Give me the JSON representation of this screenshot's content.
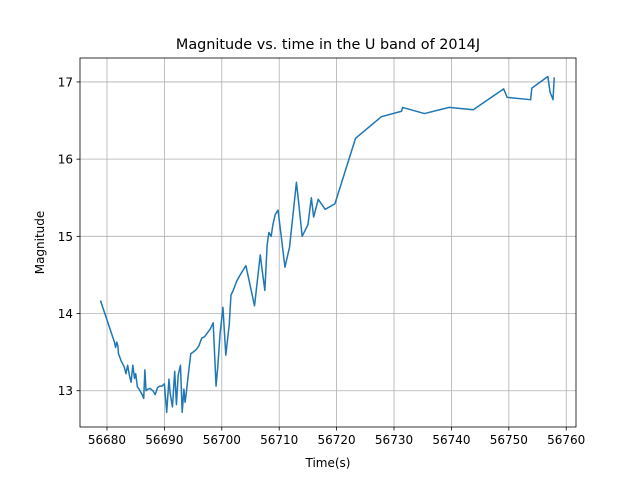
{
  "chart_data": {
    "type": "line",
    "title": "Magnitude vs. time in the U band of 2014J",
    "xlabel": "Time(s)",
    "ylabel": "Magnitude",
    "xlim": [
      56675.3,
      56761.7
    ],
    "ylim": [
      12.53,
      17.31
    ],
    "xticks": [
      56680,
      56690,
      56700,
      56710,
      56720,
      56730,
      56740,
      56750,
      56760
    ],
    "yticks": [
      13,
      14,
      15,
      16,
      17
    ],
    "grid": true,
    "line_color": "#1f77b4",
    "series": [
      {
        "x": [
          56678.9,
          56681.3,
          56681.5,
          56681.7,
          56681.9,
          56682.0,
          56682.5,
          56683.0,
          56683.3,
          56683.6,
          56683.9,
          56684.2,
          56684.5,
          56684.8,
          56685.0,
          56685.3,
          56685.6,
          56685.9,
          56686.2,
          56686.4,
          56686.6,
          56686.8,
          56687.1,
          56687.5,
          56688.0,
          56688.4,
          56688.8,
          56689.2,
          56689.6,
          56690.0,
          56690.4,
          56690.8,
          56691.0,
          56691.4,
          56691.8,
          56692.1,
          56692.4,
          56692.8,
          56693.1,
          56693.4,
          56693.6,
          56693.8,
          56694.2,
          56694.6,
          56695.0,
          56695.5,
          56696.0,
          56696.5,
          56697.0,
          56697.5,
          56698.0,
          56698.5,
          56699.0,
          56699.3,
          56699.7,
          56700.2,
          56700.7,
          56701.3,
          56701.6,
          56702.0,
          56702.6,
          56703.2,
          56704.2,
          56705.7,
          56706.7,
          56707.0,
          56707.5,
          56707.9,
          56708.2,
          56708.6,
          56708.9,
          56709.3,
          56709.8,
          56711.0,
          56711.8,
          56713.0,
          56713.3,
          56714.0,
          56715.0,
          56715.6,
          56716.0,
          56716.8,
          56718.0,
          56719.7,
          56723.3,
          56727.8,
          56731.3,
          56731.5,
          56735.3,
          56739.6,
          56743.8,
          56749.1,
          56749.7,
          56753.8,
          56754.0,
          56756.8,
          56757.2,
          56757.5,
          56757.7,
          56757.9
        ],
        "y": [
          14.16,
          13.63,
          13.56,
          13.63,
          13.58,
          13.48,
          13.38,
          13.31,
          13.22,
          13.33,
          13.2,
          13.11,
          13.33,
          13.16,
          13.22,
          13.05,
          13.02,
          12.98,
          12.94,
          12.9,
          13.27,
          13.0,
          13.02,
          13.03,
          13.0,
          12.95,
          13.04,
          13.06,
          13.06,
          13.09,
          12.72,
          13.15,
          12.97,
          12.79,
          13.25,
          12.82,
          13.2,
          13.33,
          12.72,
          13.02,
          12.85,
          12.96,
          13.23,
          13.48,
          13.5,
          13.53,
          13.58,
          13.68,
          13.7,
          13.75,
          13.8,
          13.88,
          13.06,
          13.31,
          13.74,
          14.08,
          13.46,
          13.86,
          14.24,
          14.3,
          14.42,
          14.5,
          14.62,
          14.1,
          14.76,
          14.58,
          14.3,
          14.89,
          15.05,
          15.0,
          15.15,
          15.28,
          15.34,
          14.6,
          14.86,
          15.7,
          15.5,
          15.0,
          15.15,
          15.5,
          15.25,
          15.48,
          15.35,
          15.42,
          16.27,
          16.55,
          16.62,
          16.67,
          16.59,
          16.67,
          16.64,
          16.91,
          16.8,
          16.77,
          16.92,
          17.07,
          16.86,
          16.81,
          16.77,
          17.05
        ]
      }
    ]
  }
}
